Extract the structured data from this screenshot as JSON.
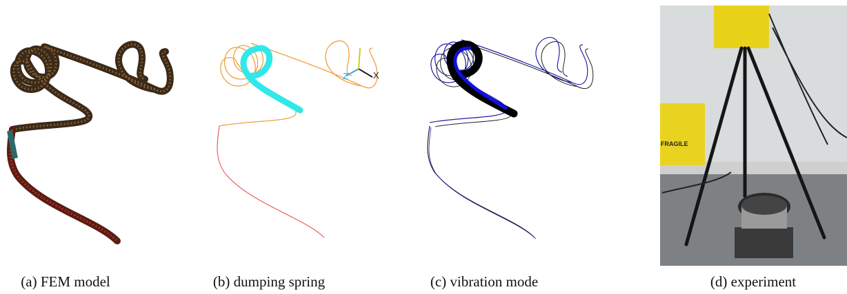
{
  "figure": {
    "panels": [
      {
        "caption": "(a) FEM model"
      },
      {
        "caption": "(b) dumping spring",
        "axis_labels": [
          "Z",
          "X"
        ]
      },
      {
        "caption": "(c) vibration mode"
      },
      {
        "caption": "(d) experiment",
        "photo_label": "FRAGILE"
      }
    ]
  }
}
